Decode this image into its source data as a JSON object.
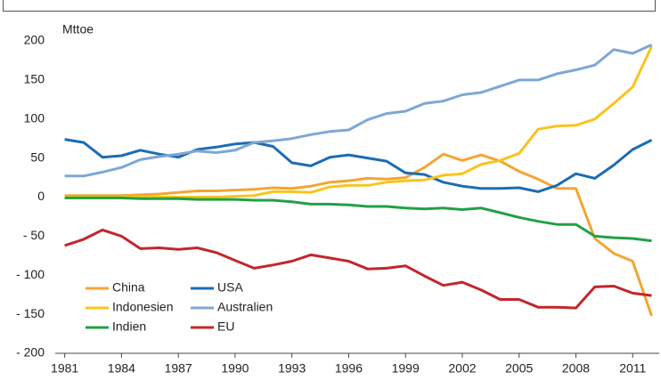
{
  "chart_data": {
    "type": "line",
    "y_unit": "Mttoe",
    "x": [
      1981,
      1982,
      1983,
      1984,
      1985,
      1986,
      1987,
      1988,
      1989,
      1990,
      1991,
      1992,
      1993,
      1994,
      1995,
      1996,
      1997,
      1998,
      1999,
      2000,
      2001,
      2002,
      2003,
      2004,
      2005,
      2006,
      2007,
      2008,
      2009,
      2010,
      2011,
      2012
    ],
    "xlim": [
      1980.5,
      2012.4
    ],
    "xticks": [
      1981,
      1984,
      1987,
      1990,
      1993,
      1996,
      1999,
      2002,
      2005,
      2008,
      2011
    ],
    "ylim": [
      -200,
      200
    ],
    "yticks": [
      {
        "value": -200,
        "label": "- 200"
      },
      {
        "value": -150,
        "label": "- 150"
      },
      {
        "value": -100,
        "label": "- 100"
      },
      {
        "value": -50,
        "label": "- 50"
      },
      0,
      50,
      100,
      150,
      200
    ],
    "grid": false,
    "series": [
      {
        "name": "China",
        "color": "#f3a533",
        "values": [
          2,
          2,
          2,
          2,
          3,
          4,
          6,
          8,
          8,
          9,
          10,
          12,
          11,
          14,
          19,
          21,
          24,
          23,
          25,
          38,
          55,
          47,
          54,
          46,
          33,
          23,
          11,
          11,
          -53,
          -72,
          -82,
          -152
        ]
      },
      {
        "name": "USA",
        "color": "#1c6db2",
        "values": [
          74,
          70,
          51,
          53,
          60,
          55,
          51,
          61,
          64,
          68,
          70,
          65,
          44,
          40,
          51,
          54,
          50,
          46,
          31,
          29,
          19,
          14,
          11,
          11,
          12,
          7,
          15,
          30,
          24,
          41,
          61,
          73
        ]
      },
      {
        "name": "Indonesien",
        "color": "#f8c41d",
        "values": [
          0,
          0,
          0,
          0,
          0,
          0,
          0,
          0,
          0,
          1,
          2,
          7,
          7,
          6,
          13,
          15,
          15,
          19,
          21,
          22,
          28,
          30,
          42,
          47,
          56,
          87,
          91,
          92,
          100,
          120,
          141,
          193
        ]
      },
      {
        "name": "Australien",
        "color": "#7ea7d5",
        "values": [
          27,
          27,
          32,
          38,
          48,
          52,
          55,
          59,
          57,
          60,
          70,
          72,
          75,
          80,
          84,
          86,
          99,
          107,
          110,
          120,
          123,
          131,
          134,
          142,
          150,
          150,
          158,
          163,
          169,
          189,
          184,
          195
        ]
      },
      {
        "name": "Indien",
        "color": "#22a046",
        "values": [
          -1,
          -1,
          -1,
          -1,
          -2,
          -2,
          -2,
          -3,
          -3,
          -3,
          -4,
          -4,
          -6,
          -9,
          -9,
          -10,
          -12,
          -12,
          -14,
          -15,
          -14,
          -16,
          -14,
          -20,
          -26,
          -31,
          -35,
          -35,
          -50,
          -52,
          -53,
          -56
        ]
      },
      {
        "name": "EU",
        "color": "#c1272d",
        "values": [
          -62,
          -54,
          -42,
          -50,
          -66,
          -65,
          -67,
          -65,
          -71,
          -81,
          -91,
          -87,
          -82,
          -74,
          -78,
          -82,
          -92,
          -91,
          -88,
          -101,
          -113,
          -109,
          -119,
          -131,
          -131,
          -141,
          -141,
          -142,
          -115,
          -114,
          -123,
          -126
        ]
      }
    ]
  }
}
